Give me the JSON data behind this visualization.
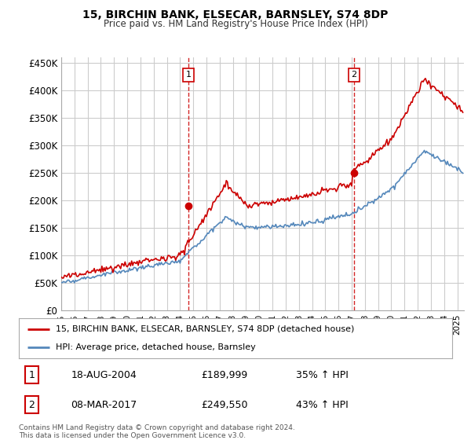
{
  "title": "15, BIRCHIN BANK, ELSECAR, BARNSLEY, S74 8DP",
  "subtitle": "Price paid vs. HM Land Registry's House Price Index (HPI)",
  "ylabel_ticks": [
    "£0",
    "£50K",
    "£100K",
    "£150K",
    "£200K",
    "£250K",
    "£300K",
    "£350K",
    "£400K",
    "£450K"
  ],
  "ytick_vals": [
    0,
    50000,
    100000,
    150000,
    200000,
    250000,
    300000,
    350000,
    400000,
    450000
  ],
  "ylim": [
    0,
    460000
  ],
  "xlim_start": 1995.0,
  "xlim_end": 2025.5,
  "vline1_x": 2004.63,
  "vline2_x": 2017.18,
  "point1_x": 2004.63,
  "point1_y": 189999,
  "point2_x": 2017.18,
  "point2_y": 249550,
  "legend_line1": "15, BIRCHIN BANK, ELSECAR, BARNSLEY, S74 8DP (detached house)",
  "legend_line2": "HPI: Average price, detached house, Barnsley",
  "annotation1_label": "1",
  "annotation1_date": "18-AUG-2004",
  "annotation1_price": "£189,999",
  "annotation1_pct": "35% ↑ HPI",
  "annotation2_label": "2",
  "annotation2_date": "08-MAR-2017",
  "annotation2_price": "£249,550",
  "annotation2_pct": "43% ↑ HPI",
  "footer": "Contains HM Land Registry data © Crown copyright and database right 2024.\nThis data is licensed under the Open Government Licence v3.0.",
  "line_color_red": "#cc0000",
  "line_color_blue": "#5588bb",
  "vline_color": "#cc0000",
  "grid_color": "#cccccc",
  "background_color": "#ffffff"
}
